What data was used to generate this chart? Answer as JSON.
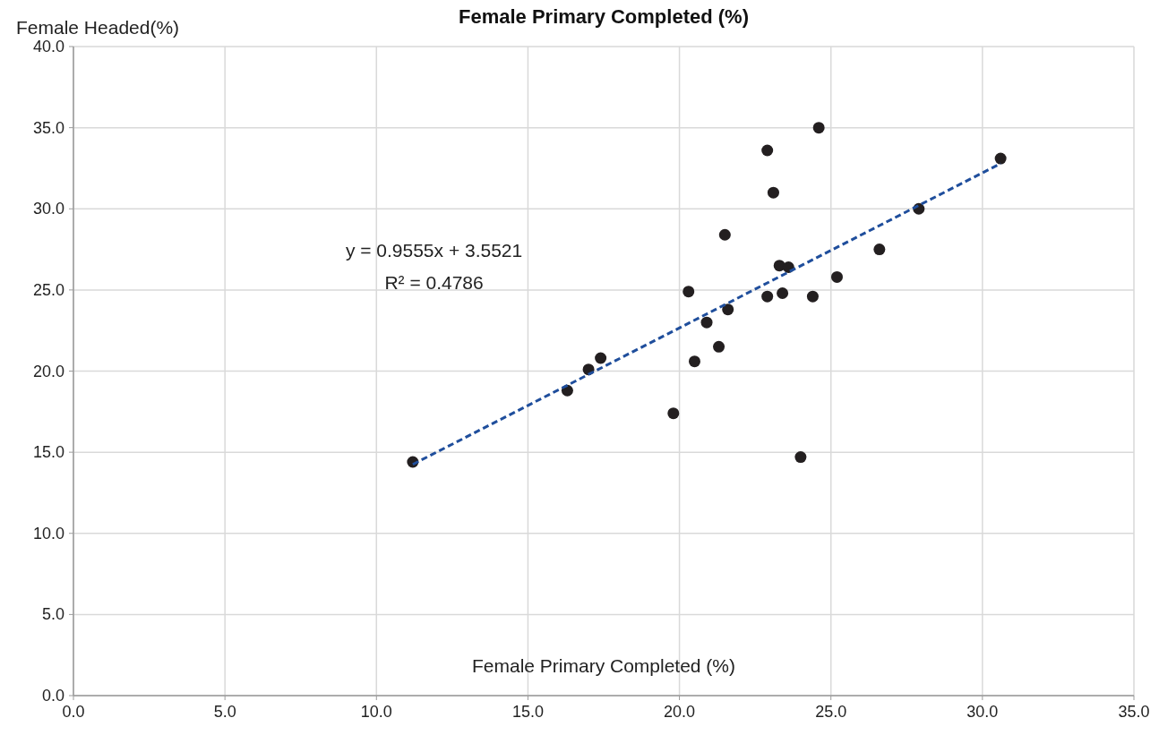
{
  "chart_data": {
    "type": "scatter",
    "title": "Female Primary Completed (%)",
    "xlabel": "Female Primary Completed (%)",
    "ylabel": "Female Headed(%)",
    "xlim": [
      0,
      35
    ],
    "ylim": [
      0,
      40
    ],
    "xticks": [
      {
        "value": 0,
        "label": "0.0"
      },
      {
        "value": 5,
        "label": "5.0"
      },
      {
        "value": 10,
        "label": "10.0"
      },
      {
        "value": 15,
        "label": "15.0"
      },
      {
        "value": 20,
        "label": "20.0"
      },
      {
        "value": 25,
        "label": "25.0"
      },
      {
        "value": 30,
        "label": "30.0"
      },
      {
        "value": 35,
        "label": "35.0"
      }
    ],
    "yticks": [
      {
        "value": 0,
        "label": "0.0"
      },
      {
        "value": 5,
        "label": "5.0"
      },
      {
        "value": 10,
        "label": "10.0"
      },
      {
        "value": 15,
        "label": "15.0"
      },
      {
        "value": 20,
        "label": "20.0"
      },
      {
        "value": 25,
        "label": "25.0"
      },
      {
        "value": 30,
        "label": "30.0"
      },
      {
        "value": 35,
        "label": "35.0"
      },
      {
        "value": 40,
        "label": "40.0"
      }
    ],
    "grid": true,
    "series": [
      {
        "color": "#231f20",
        "marker": "circle",
        "x": [
          11.2,
          16.3,
          17.0,
          17.4,
          19.8,
          20.3,
          20.5,
          20.9,
          21.3,
          21.5,
          21.6,
          22.9,
          22.9,
          23.1,
          23.3,
          23.4,
          23.6,
          24.0,
          24.4,
          24.6,
          25.2,
          26.6,
          27.9,
          30.6
        ],
        "values": [
          14.4,
          18.8,
          20.1,
          20.8,
          17.4,
          24.9,
          20.6,
          23.0,
          21.5,
          28.4,
          23.8,
          33.6,
          24.6,
          31.0,
          26.5,
          24.8,
          26.4,
          14.7,
          24.6,
          35.0,
          25.8,
          27.5,
          30.0,
          33.1
        ]
      },
      {
        "type": "line",
        "color": "#1f4e9c",
        "line_style": "dashed",
        "marker": "none",
        "x": [
          11.2,
          30.6
        ],
        "values": [
          14.25,
          32.79
        ]
      }
    ],
    "annotations": [
      "y = 0.9555x + 3.5521",
      "R² = 0.4786"
    ]
  }
}
